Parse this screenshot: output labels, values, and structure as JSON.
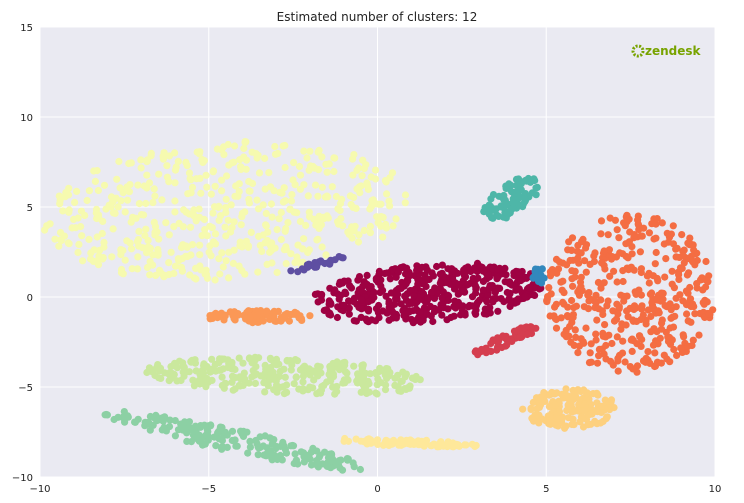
{
  "chart_data": {
    "type": "scatter",
    "title": "Estimated number of clusters: 12",
    "xlabel": "",
    "ylabel": "",
    "xlim": [
      -10,
      10
    ],
    "ylim": [
      -10,
      15
    ],
    "x_ticks": [
      -10,
      -5,
      0,
      5,
      10
    ],
    "y_ticks": [
      -10,
      -5,
      0,
      5,
      10,
      15
    ],
    "x_tick_labels": [
      "−10",
      "−5",
      "0",
      "5",
      "10"
    ],
    "y_tick_labels": [
      "−10",
      "−5",
      "0",
      "5",
      "10",
      "15"
    ],
    "grid": true,
    "background": "#EAEAF2",
    "logo_text": "zendesk",
    "logo_color": "#78A300",
    "clusters": [
      {
        "color": "#F6FAAF",
        "center": [
          -4.5,
          4.8
        ],
        "radius": [
          5.5,
          3.8
        ],
        "rotation_deg": 12,
        "count": 520
      },
      {
        "color": "#9E0142",
        "center": [
          1.5,
          0.2
        ],
        "radius": [
          3.5,
          1.6
        ],
        "rotation_deg": 10,
        "count": 460
      },
      {
        "color": "#F46D43",
        "center": [
          7.5,
          0.2
        ],
        "radius": [
          2.5,
          4.4
        ],
        "rotation_deg": 0,
        "count": 420
      },
      {
        "color": "#CAE89D",
        "center": [
          -2.7,
          -4.4
        ],
        "radius": [
          4.2,
          1.0
        ],
        "rotation_deg": -5,
        "count": 300
      },
      {
        "color": "#8CD0A4",
        "center": [
          -4.2,
          -8.0
        ],
        "radius": [
          4.2,
          0.6
        ],
        "rotation_deg": -22,
        "count": 200
      },
      {
        "color": "#FDD07F",
        "center": [
          5.7,
          -6.2
        ],
        "radius": [
          1.4,
          1.1
        ],
        "rotation_deg": 0,
        "count": 170
      },
      {
        "color": "#FEE89A",
        "center": [
          0.8,
          -8.1
        ],
        "radius": [
          2.2,
          0.2
        ],
        "rotation_deg": -4,
        "count": 90
      },
      {
        "color": "#FB9856",
        "center": [
          -3.5,
          -1.1
        ],
        "radius": [
          1.6,
          0.35
        ],
        "rotation_deg": 0,
        "count": 80
      },
      {
        "color": "#4EB6A8",
        "center": [
          4.0,
          5.5
        ],
        "radius": [
          0.6,
          1.4
        ],
        "rotation_deg": -30,
        "count": 80
      },
      {
        "color": "#D53E4F",
        "center": [
          3.8,
          -2.4
        ],
        "radius": [
          1.2,
          0.3
        ],
        "rotation_deg": 40,
        "count": 60
      },
      {
        "color": "#5E4FA2",
        "center": [
          -1.8,
          1.8
        ],
        "radius": [
          0.9,
          0.18
        ],
        "rotation_deg": 28,
        "count": 30
      },
      {
        "color": "#3288BD",
        "center": [
          4.8,
          1.2
        ],
        "radius": [
          0.2,
          0.45
        ],
        "rotation_deg": 0,
        "count": 20
      }
    ]
  }
}
